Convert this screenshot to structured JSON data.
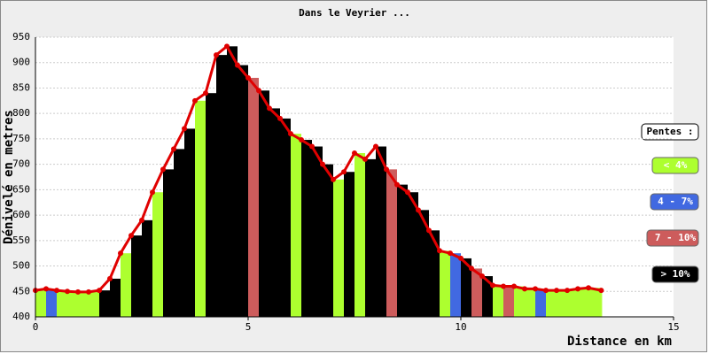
{
  "chart_data": {
    "type": "area",
    "title": "Dans le Veyrier ...",
    "x_label": "Distance en km",
    "y_label": "Dénivelé en metres",
    "legend_title": "Pentes :",
    "legend": [
      {
        "label": "< 4%",
        "color": "#adff2f"
      },
      {
        "label": "4 - 7%",
        "color": "#4169e1"
      },
      {
        "label": "7 - 10%",
        "color": "#cd5c5c"
      },
      {
        "label": "> 10%",
        "color": "#000000"
      }
    ],
    "xlim": [
      0,
      15
    ],
    "xticks": [
      0,
      5,
      10,
      15
    ],
    "ylim": [
      400,
      950
    ],
    "yticks": [
      400,
      450,
      500,
      550,
      600,
      650,
      700,
      750,
      800,
      850,
      900,
      950
    ],
    "grid": true,
    "marker_color": "#e00000",
    "x": [
      0,
      0.25,
      0.5,
      0.75,
      1,
      1.25,
      1.5,
      1.75,
      2,
      2.25,
      2.5,
      2.75,
      3,
      3.25,
      3.5,
      3.75,
      4,
      4.25,
      4.5,
      4.75,
      5,
      5.25,
      5.5,
      5.75,
      6,
      6.25,
      6.5,
      6.75,
      7,
      7.25,
      7.5,
      7.75,
      8,
      8.25,
      8.5,
      8.75,
      9,
      9.25,
      9.5,
      9.75,
      10,
      10.25,
      10.5,
      10.75,
      11,
      11.25,
      11.5,
      11.75,
      12,
      12.25,
      12.5,
      12.75,
      13,
      13.3
    ],
    "values": [
      452,
      455,
      452,
      450,
      449,
      449,
      452,
      475,
      525,
      560,
      590,
      645,
      690,
      730,
      770,
      825,
      840,
      915,
      932,
      895,
      870,
      845,
      810,
      790,
      760,
      748,
      735,
      700,
      670,
      685,
      722,
      710,
      735,
      690,
      660,
      645,
      610,
      570,
      530,
      525,
      515,
      495,
      480,
      462,
      460,
      460,
      455,
      455,
      452,
      452,
      452,
      455,
      457,
      452
    ],
    "bar_colors": [
      "#adff2f",
      "#4169e1",
      "#adff2f",
      "#adff2f",
      "#adff2f",
      "#adff2f",
      "#000000",
      "#000000",
      "#adff2f",
      "#000000",
      "#000000",
      "#adff2f",
      "#000000",
      "#000000",
      "#000000",
      "#adff2f",
      "#000000",
      "#000000",
      "#000000",
      "#000000",
      "#cd5c5c",
      "#000000",
      "#000000",
      "#000000",
      "#adff2f",
      "#000000",
      "#000000",
      "#000000",
      "#adff2f",
      "#000000",
      "#adff2f",
      "#000000",
      "#000000",
      "#cd5c5c",
      "#000000",
      "#000000",
      "#000000",
      "#000000",
      "#adff2f",
      "#4169e1",
      "#000000",
      "#cd5c5c",
      "#000000",
      "#adff2f",
      "#cd5c5c",
      "#adff2f",
      "#adff2f",
      "#4169e1",
      "#adff2f",
      "#adff2f",
      "#adff2f",
      "#adff2f",
      "#adff2f",
      "#adff2f"
    ]
  }
}
